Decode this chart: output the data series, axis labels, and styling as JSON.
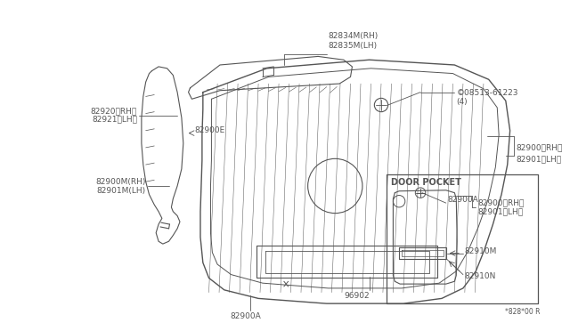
{
  "bg_color": "#ffffff",
  "line_color": "#555555",
  "fig_width": 6.4,
  "fig_height": 3.72,
  "dpi": 100,
  "labels": {
    "82834M": "82834M(RH)\n82835M(LH)",
    "82920": "82920〈RH〉",
    "82921": "82921〈LH〉",
    "82900E": "82900E",
    "08513": "©08513-61223\n(4)",
    "82900_rh": "82900〈RH〉",
    "82901_lh": "82901〈LH〉",
    "82900A_main": "82900A",
    "82900M": "82900M(RH)",
    "82901M": "82901M(LH)",
    "96902": "96902",
    "82900A_bot": "82900A",
    "door_pocket": "DOOR POCKET",
    "82900_rh2": "82900〈RH〉",
    "82901_lh2": "82901〈LH〉",
    "82910M": "82910M",
    "82910N": "82910N",
    "footer": "*828*00 R"
  }
}
